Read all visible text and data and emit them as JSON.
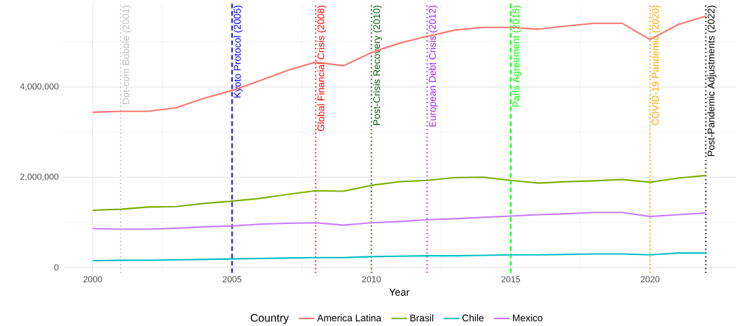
{
  "chart_data": {
    "type": "line",
    "xlabel": "Year",
    "legend_title": "Country",
    "legend": "bottom",
    "grid": true,
    "x": [
      2000,
      2001,
      2002,
      2003,
      2004,
      2005,
      2006,
      2007,
      2008,
      2009,
      2010,
      2011,
      2012,
      2013,
      2014,
      2015,
      2016,
      2017,
      2018,
      2019,
      2020,
      2021,
      2022
    ],
    "series": [
      {
        "name": "America Latina",
        "color": "#f8766d",
        "values": [
          3440000,
          3460000,
          3460000,
          3540000,
          3750000,
          3920000,
          4140000,
          4370000,
          4550000,
          4470000,
          4760000,
          4970000,
          5120000,
          5260000,
          5320000,
          5320000,
          5280000,
          5350000,
          5410000,
          5410000,
          5050000,
          5380000,
          5570000
        ]
      },
      {
        "name": "Brasil",
        "color": "#7cae00",
        "values": [
          1270000,
          1290000,
          1340000,
          1350000,
          1420000,
          1470000,
          1530000,
          1620000,
          1700000,
          1690000,
          1820000,
          1900000,
          1930000,
          1990000,
          2000000,
          1930000,
          1870000,
          1900000,
          1920000,
          1950000,
          1890000,
          1980000,
          2040000
        ]
      },
      {
        "name": "Chile",
        "color": "#00bfc4",
        "values": [
          150000,
          160000,
          160000,
          170000,
          180000,
          190000,
          200000,
          210000,
          220000,
          220000,
          240000,
          250000,
          260000,
          260000,
          270000,
          280000,
          280000,
          290000,
          300000,
          300000,
          280000,
          320000,
          320000
        ]
      },
      {
        "name": "Mexico",
        "color": "#c77cff",
        "values": [
          860000,
          850000,
          850000,
          870000,
          900000,
          920000,
          960000,
          980000,
          990000,
          940000,
          990000,
          1020000,
          1060000,
          1080000,
          1110000,
          1140000,
          1170000,
          1190000,
          1220000,
          1220000,
          1130000,
          1170000,
          1210000
        ]
      }
    ],
    "xlim": [
      1998.9,
      2023.1
    ],
    "ylim": [
      -120000,
      5850000
    ],
    "xticks": [
      2000,
      2005,
      2010,
      2015,
      2020
    ],
    "yticks": [
      {
        "value": 0,
        "label": "0"
      },
      {
        "value": 2000000,
        "label": "2,000,000"
      },
      {
        "value": 4000000,
        "label": "4,000,000"
      }
    ],
    "ref_lines": [
      {
        "axis": "x",
        "value": 2001,
        "label": "Dot-com Bubble (2001)",
        "color": "#bebebe",
        "line_style": "dotted"
      },
      {
        "axis": "x",
        "value": 2005,
        "label": "Kyoto Protocol (2005)",
        "color": "#0000ff",
        "line_style": "dashed"
      },
      {
        "axis": "x",
        "value": 2008,
        "label": "Global Financial Crisis (2008)",
        "color": "#ff0000",
        "line_style": "dotted"
      },
      {
        "axis": "x",
        "value": 2010,
        "label": "Post-Crisis Recovery (2010)",
        "color": "#006400",
        "line_style": "dotted"
      },
      {
        "axis": "x",
        "value": 2012,
        "label": "European Debt Crisis (2012)",
        "color": "#a020f0",
        "line_style": "dotted"
      },
      {
        "axis": "x",
        "value": 2015,
        "label": "Paris Agreement (2015)",
        "color": "#00ff00",
        "line_style": "dashed"
      },
      {
        "axis": "x",
        "value": 2020,
        "label": "COVID-19 Pandemic (2020)",
        "color": "#ffa500",
        "line_style": "dotted"
      },
      {
        "axis": "x",
        "value": 2022,
        "label": "Post-Pandemic Adjustments (2022)",
        "color": "#000000",
        "line_style": "dotted"
      }
    ]
  }
}
